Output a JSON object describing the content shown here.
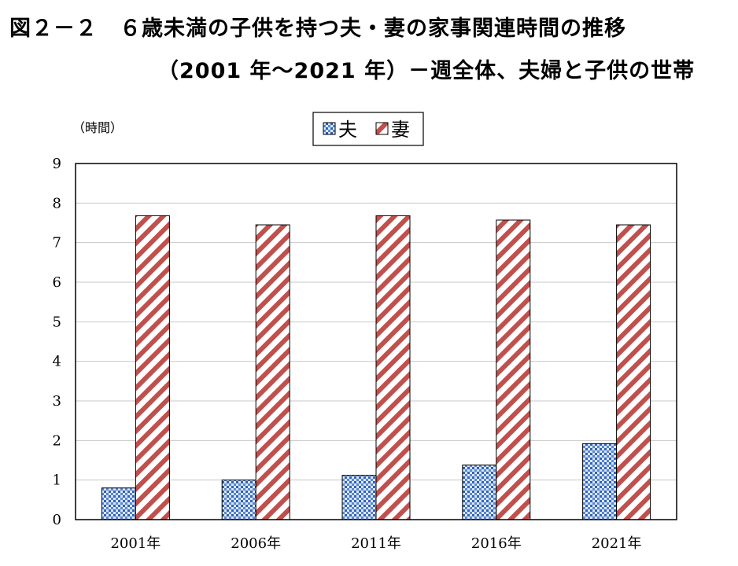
{
  "title": {
    "line1": "図２－２　６歳未満の子供を持つ夫・妻の家事関連時間の推移",
    "line2": "（2001 年～2021 年）－週全体、夫婦と子供の世帯"
  },
  "chart_data": {
    "type": "bar",
    "unit_label": "（時間）",
    "categories": [
      "2001年",
      "2006年",
      "2011年",
      "2016年",
      "2021年"
    ],
    "series": [
      {
        "name": "夫",
        "values": [
          0.8,
          1.0,
          1.12,
          1.38,
          1.92
        ],
        "color": "#2e63b8",
        "pattern": "dots"
      },
      {
        "name": "妻",
        "values": [
          7.68,
          7.45,
          7.68,
          7.57,
          7.45
        ],
        "color": "#c0504d",
        "pattern": "diagonal-stripes"
      }
    ],
    "ylim": [
      0,
      9
    ],
    "yticks": [
      "0",
      "1",
      "2",
      "3",
      "4",
      "5",
      "6",
      "7",
      "8",
      "9"
    ],
    "grid": true,
    "legend_position": "top-center"
  }
}
